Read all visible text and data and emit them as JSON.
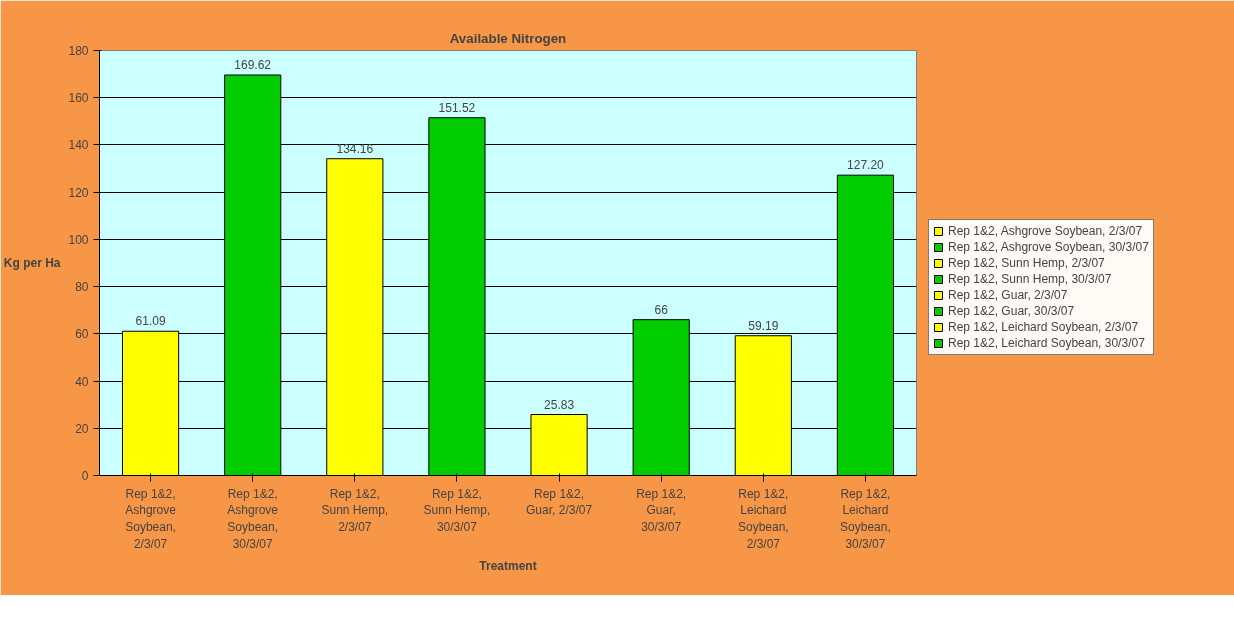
{
  "chart_data": {
    "type": "bar",
    "title": "Available Nitrogen",
    "xlabel": "Treatment",
    "ylabel": "Kg per Ha",
    "categories": [
      "Rep 1&2, Ashgrove Soybean, 2/3/07",
      "Rep 1&2, Ashgrove Soybean, 30/3/07",
      "Rep 1&2, Sunn Hemp, 2/3/07",
      "Rep 1&2, Sunn Hemp, 30/3/07",
      "Rep 1&2, Guar, 2/3/07",
      "Rep 1&2, Guar, 30/3/07",
      "Rep 1&2, Leichard Soybean, 2/3/07",
      "Rep 1&2, Leichard Soybean, 30/3/07"
    ],
    "stacked": true,
    "series": [
      {
        "name": "Rep 1&2, Ashgrove Soybean, 2/3/07",
        "color": "#ffff00",
        "values": [
          61.09,
          null,
          null,
          null,
          null,
          null,
          null,
          null
        ],
        "value_labels": [
          "61.09",
          null,
          null,
          null,
          null,
          null,
          null,
          null
        ]
      },
      {
        "name": "Rep 1&2, Ashgrove Soybean, 30/3/07",
        "color": "#00cc00",
        "values": [
          null,
          169.62,
          null,
          null,
          null,
          null,
          null,
          null
        ],
        "value_labels": [
          null,
          "169.62",
          null,
          null,
          null,
          null,
          null,
          null
        ]
      },
      {
        "name": "Rep 1&2, Sunn Hemp, 2/3/07",
        "color": "#ffff00",
        "values": [
          null,
          null,
          134.16,
          null,
          null,
          null,
          null,
          null
        ],
        "value_labels": [
          null,
          null,
          "134.16",
          null,
          null,
          null,
          null,
          null
        ]
      },
      {
        "name": "Rep 1&2, Sunn Hemp, 30/3/07",
        "color": "#00cc00",
        "values": [
          null,
          null,
          null,
          151.52,
          null,
          null,
          null,
          null
        ],
        "value_labels": [
          null,
          null,
          null,
          "151.52",
          null,
          null,
          null,
          null
        ]
      },
      {
        "name": "Rep 1&2, Guar, 2/3/07",
        "color": "#ffff00",
        "values": [
          null,
          null,
          null,
          null,
          25.83,
          null,
          null,
          null
        ],
        "value_labels": [
          null,
          null,
          null,
          null,
          "25.83",
          null,
          null,
          null
        ]
      },
      {
        "name": "Rep 1&2, Guar, 30/3/07",
        "color": "#00cc00",
        "values": [
          null,
          null,
          null,
          null,
          null,
          66,
          null,
          null
        ],
        "value_labels": [
          null,
          null,
          null,
          null,
          null,
          "66",
          null,
          null
        ]
      },
      {
        "name": "Rep 1&2, Leichard Soybean, 2/3/07",
        "color": "#ffff00",
        "values": [
          null,
          null,
          null,
          null,
          null,
          null,
          59.19,
          null
        ],
        "value_labels": [
          null,
          null,
          null,
          null,
          null,
          null,
          "59.19",
          null
        ]
      },
      {
        "name": "Rep 1&2, Leichard Soybean, 30/3/07",
        "color": "#00cc00",
        "values": [
          null,
          null,
          null,
          null,
          null,
          null,
          null,
          127.2
        ],
        "value_labels": [
          null,
          null,
          null,
          null,
          null,
          null,
          null,
          "127.20"
        ]
      }
    ],
    "ylim": [
      0,
      180
    ],
    "yticks": [
      0,
      20,
      40,
      60,
      80,
      100,
      120,
      140,
      160,
      180
    ],
    "grid": "y",
    "legend": "right"
  }
}
